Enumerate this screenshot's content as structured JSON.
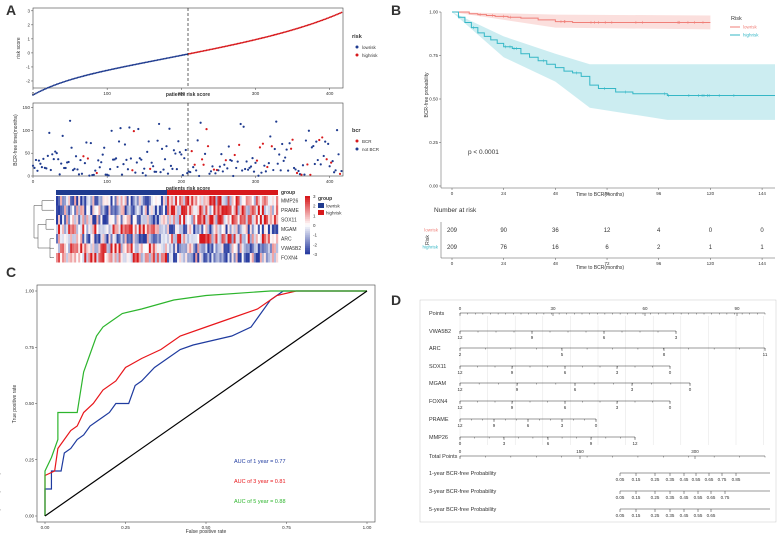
{
  "panels": {
    "a": "A",
    "b": "B",
    "c": "C",
    "d": "D"
  },
  "chart_data": [
    {
      "id": "A1",
      "type": "scatter",
      "ylabel": "risk score",
      "xlabel": "patients risk score",
      "x_ticks": [
        "0",
        "100",
        "200",
        "300",
        "400"
      ],
      "y_ticks": [
        "-2",
        "-1",
        "0",
        "1",
        "2",
        "3"
      ],
      "xlim": [
        0,
        418
      ],
      "ylim": [
        -2.5,
        3.2
      ],
      "cutoff": 209,
      "legend": {
        "title": "risk",
        "items": [
          "lowrisk",
          "highrisk"
        ]
      },
      "colors": {
        "lowrisk": "#1f3b8f",
        "highrisk": "#d7191c"
      }
    },
    {
      "id": "A2",
      "type": "scatter",
      "ylabel": "BCR-free time(months)",
      "xlabel": "patients risk score",
      "x_ticks": [
        "0",
        "100",
        "200",
        "300",
        "400"
      ],
      "y_ticks": [
        "0",
        "50",
        "100",
        "150"
      ],
      "xlim": [
        0,
        418
      ],
      "ylim": [
        0,
        160
      ],
      "cutoff": 209,
      "legend": {
        "title": "bcr",
        "items": [
          "BCR",
          "not BCR"
        ]
      },
      "colors": {
        "BCR": "#d7191c",
        "not BCR": "#1f3b8f"
      }
    },
    {
      "id": "A3",
      "type": "heatmap",
      "genes": [
        "MMP26",
        "PRAME",
        "SOX11",
        "MGAM",
        "ARC",
        "VWA5B2",
        "FOXN4"
      ],
      "scale_ticks": [
        "3",
        "2",
        "1",
        "0",
        "-1",
        "-2",
        "-3"
      ],
      "group_title": "group",
      "group_legend_title": "group",
      "groups": [
        "lowrisk",
        "highrisk"
      ],
      "group_colors": {
        "lowrisk": "#1f3b8f",
        "highrisk": "#d7191c"
      }
    },
    {
      "id": "B",
      "type": "line",
      "title": "Risk",
      "ylabel": "BCR-free probability",
      "xlabel": "Time to BCR(months)",
      "x_ticks": [
        "0",
        "24",
        "48",
        "72",
        "96",
        "120",
        "144"
      ],
      "y_ticks": [
        "0.00",
        "0.25",
        "0.50",
        "0.75",
        "1.00"
      ],
      "xlim": [
        0,
        150
      ],
      "ylim": [
        0,
        1
      ],
      "pvalue": "p < 0.0001",
      "series": [
        {
          "name": "lowrisk",
          "color": "#f07f78",
          "points": [
            [
              0,
              1
            ],
            [
              5,
              1
            ],
            [
              8,
              0.99
            ],
            [
              12,
              0.985
            ],
            [
              16,
              0.98
            ],
            [
              20,
              0.975
            ],
            [
              26,
              0.97
            ],
            [
              32,
              0.965
            ],
            [
              40,
              0.955
            ],
            [
              48,
              0.945
            ],
            [
              56,
              0.94
            ],
            [
              120,
              0.94
            ]
          ],
          "ci_upper": [
            [
              0,
              1
            ],
            [
              48,
              0.985
            ],
            [
              120,
              0.98
            ]
          ],
          "ci_lower": [
            [
              0,
              1
            ],
            [
              48,
              0.91
            ],
            [
              120,
              0.9
            ]
          ]
        },
        {
          "name": "highrisk",
          "color": "#35b7c6",
          "points": [
            [
              0,
              1
            ],
            [
              3,
              0.97
            ],
            [
              6,
              0.94
            ],
            [
              9,
              0.91
            ],
            [
              12,
              0.88
            ],
            [
              15,
              0.86
            ],
            [
              18,
              0.84
            ],
            [
              21,
              0.82
            ],
            [
              24,
              0.8
            ],
            [
              28,
              0.79
            ],
            [
              32,
              0.76
            ],
            [
              36,
              0.74
            ],
            [
              40,
              0.72
            ],
            [
              44,
              0.7
            ],
            [
              48,
              0.68
            ],
            [
              52,
              0.66
            ],
            [
              56,
              0.65
            ],
            [
              60,
              0.63
            ],
            [
              64,
              0.58
            ],
            [
              68,
              0.56
            ],
            [
              76,
              0.54
            ],
            [
              84,
              0.53
            ],
            [
              100,
              0.52
            ],
            [
              150,
              0.52
            ]
          ],
          "ci_upper": [
            [
              0,
              1
            ],
            [
              24,
              0.86
            ],
            [
              48,
              0.76
            ],
            [
              64,
              0.7
            ],
            [
              150,
              0.7
            ]
          ],
          "ci_lower": [
            [
              0,
              1
            ],
            [
              24,
              0.74
            ],
            [
              48,
              0.6
            ],
            [
              64,
              0.45
            ],
            [
              100,
              0.38
            ],
            [
              150,
              0.38
            ]
          ]
        }
      ]
    },
    {
      "id": "B-risk",
      "type": "table",
      "title": "Number at risk",
      "row_axis_label": "Risk",
      "xlabel": "Time to BCR(months)",
      "times": [
        "0",
        "24",
        "48",
        "72",
        "96",
        "120",
        "144"
      ],
      "rows": [
        {
          "name": "lowrisk",
          "color": "#f07f78",
          "values": [
            "209",
            "90",
            "36",
            "12",
            "4",
            "0",
            "0"
          ]
        },
        {
          "name": "highrisk",
          "color": "#35b7c6",
          "values": [
            "209",
            "76",
            "16",
            "6",
            "2",
            "1",
            "1"
          ]
        }
      ]
    },
    {
      "id": "C",
      "type": "line",
      "xlabel": "False positive rate",
      "ylabel": "True positive rate",
      "x_ticks": [
        "0.00",
        "0.25",
        "0.50",
        "0.75",
        "1.00"
      ],
      "y_ticks": [
        "0.00",
        "0.25",
        "0.50",
        "0.75",
        "1.00"
      ],
      "xlim": [
        0,
        1
      ],
      "ylim": [
        0,
        1
      ],
      "series": [
        {
          "name": "AUC of 1 year = 0.77",
          "color": "#1f3b9f",
          "points": [
            [
              0,
              0
            ],
            [
              0,
              0.12
            ],
            [
              0.02,
              0.12
            ],
            [
              0.02,
              0.2
            ],
            [
              0.05,
              0.2
            ],
            [
              0.06,
              0.28
            ],
            [
              0.08,
              0.3
            ],
            [
              0.1,
              0.34
            ],
            [
              0.12,
              0.36
            ],
            [
              0.14,
              0.4
            ],
            [
              0.16,
              0.42
            ],
            [
              0.18,
              0.44
            ],
            [
              0.2,
              0.46
            ],
            [
              0.22,
              0.5
            ],
            [
              0.26,
              0.5
            ],
            [
              0.28,
              0.58
            ],
            [
              0.3,
              0.6
            ],
            [
              0.34,
              0.66
            ],
            [
              0.38,
              0.7
            ],
            [
              0.42,
              0.74
            ],
            [
              0.46,
              0.76
            ],
            [
              0.52,
              0.78
            ],
            [
              0.58,
              0.8
            ],
            [
              0.64,
              0.84
            ],
            [
              0.7,
              0.96
            ],
            [
              0.74,
              1
            ],
            [
              1,
              1
            ]
          ]
        },
        {
          "name": "AUC of 3 year = 0.81",
          "color": "#e8161b",
          "points": [
            [
              0,
              0
            ],
            [
              0,
              0.18
            ],
            [
              0.03,
              0.2
            ],
            [
              0.04,
              0.3
            ],
            [
              0.06,
              0.34
            ],
            [
              0.08,
              0.38
            ],
            [
              0.1,
              0.4
            ],
            [
              0.12,
              0.46
            ],
            [
              0.15,
              0.5
            ],
            [
              0.18,
              0.56
            ],
            [
              0.22,
              0.6
            ],
            [
              0.25,
              0.66
            ],
            [
              0.3,
              0.7
            ],
            [
              0.36,
              0.74
            ],
            [
              0.42,
              0.8
            ],
            [
              0.5,
              0.84
            ],
            [
              0.58,
              0.88
            ],
            [
              0.66,
              0.92
            ],
            [
              0.72,
              0.98
            ],
            [
              0.78,
              1
            ],
            [
              1,
              1
            ]
          ]
        },
        {
          "name": "AUC of 5 year = 0.88",
          "color": "#2db52d",
          "points": [
            [
              0,
              0
            ],
            [
              0,
              0.2
            ],
            [
              0.02,
              0.26
            ],
            [
              0.04,
              0.34
            ],
            [
              0.04,
              0.46
            ],
            [
              0.1,
              0.46
            ],
            [
              0.12,
              0.64
            ],
            [
              0.14,
              0.72
            ],
            [
              0.16,
              0.8
            ],
            [
              0.18,
              0.84
            ],
            [
              0.2,
              0.86
            ],
            [
              0.24,
              0.9
            ],
            [
              0.3,
              0.92
            ],
            [
              0.4,
              0.96
            ],
            [
              0.5,
              0.98
            ],
            [
              0.7,
              1
            ],
            [
              1,
              1
            ]
          ]
        },
        {
          "name": "reference",
          "color": "#000000",
          "points": [
            [
              0,
              0
            ],
            [
              1,
              1
            ]
          ]
        }
      ]
    },
    {
      "id": "D",
      "type": "table",
      "title": "Nomogram",
      "rows": [
        {
          "name": "Points",
          "ticks": [
            "0",
            "30",
            "60",
            "90"
          ]
        },
        {
          "name": "VWA5B2",
          "ticks": [
            "12",
            "9",
            "6",
            "3"
          ]
        },
        {
          "name": "ARC",
          "ticks": [
            "2",
            "5",
            "8",
            "11"
          ]
        },
        {
          "name": "SOX11",
          "ticks": [
            "12",
            "9",
            "6",
            "3",
            "0"
          ]
        },
        {
          "name": "MGAM",
          "ticks": [
            "12",
            "9",
            "6",
            "3",
            "0"
          ]
        },
        {
          "name": "FOXN4",
          "ticks": [
            "12",
            "9",
            "6",
            "3",
            "0"
          ]
        },
        {
          "name": "PRAME",
          "ticks": [
            "12",
            "9",
            "6",
            "3",
            "0"
          ]
        },
        {
          "name": "MMP26",
          "ticks": [
            "0",
            "3",
            "6",
            "9",
            "12"
          ]
        },
        {
          "name": "Total Points",
          "ticks": [
            "0",
            "150",
            "300"
          ]
        },
        {
          "name": "1-year BCR-free Probability",
          "ticks": [
            "0.05",
            "0.15",
            "0.25",
            "0.35",
            "0.45",
            "0.55",
            "0.65",
            "0.75",
            "0.85"
          ]
        },
        {
          "name": "3-year BCR-free Probability",
          "ticks": [
            "0.05",
            "0.15",
            "0.25",
            "0.35",
            "0.45",
            "0.55",
            "0.65",
            "0.75"
          ]
        },
        {
          "name": "5-year BCR-free Probability",
          "ticks": [
            "0.05",
            "0.15",
            "0.25",
            "0.35",
            "0.45",
            "0.55",
            "0.65"
          ]
        }
      ]
    }
  ]
}
